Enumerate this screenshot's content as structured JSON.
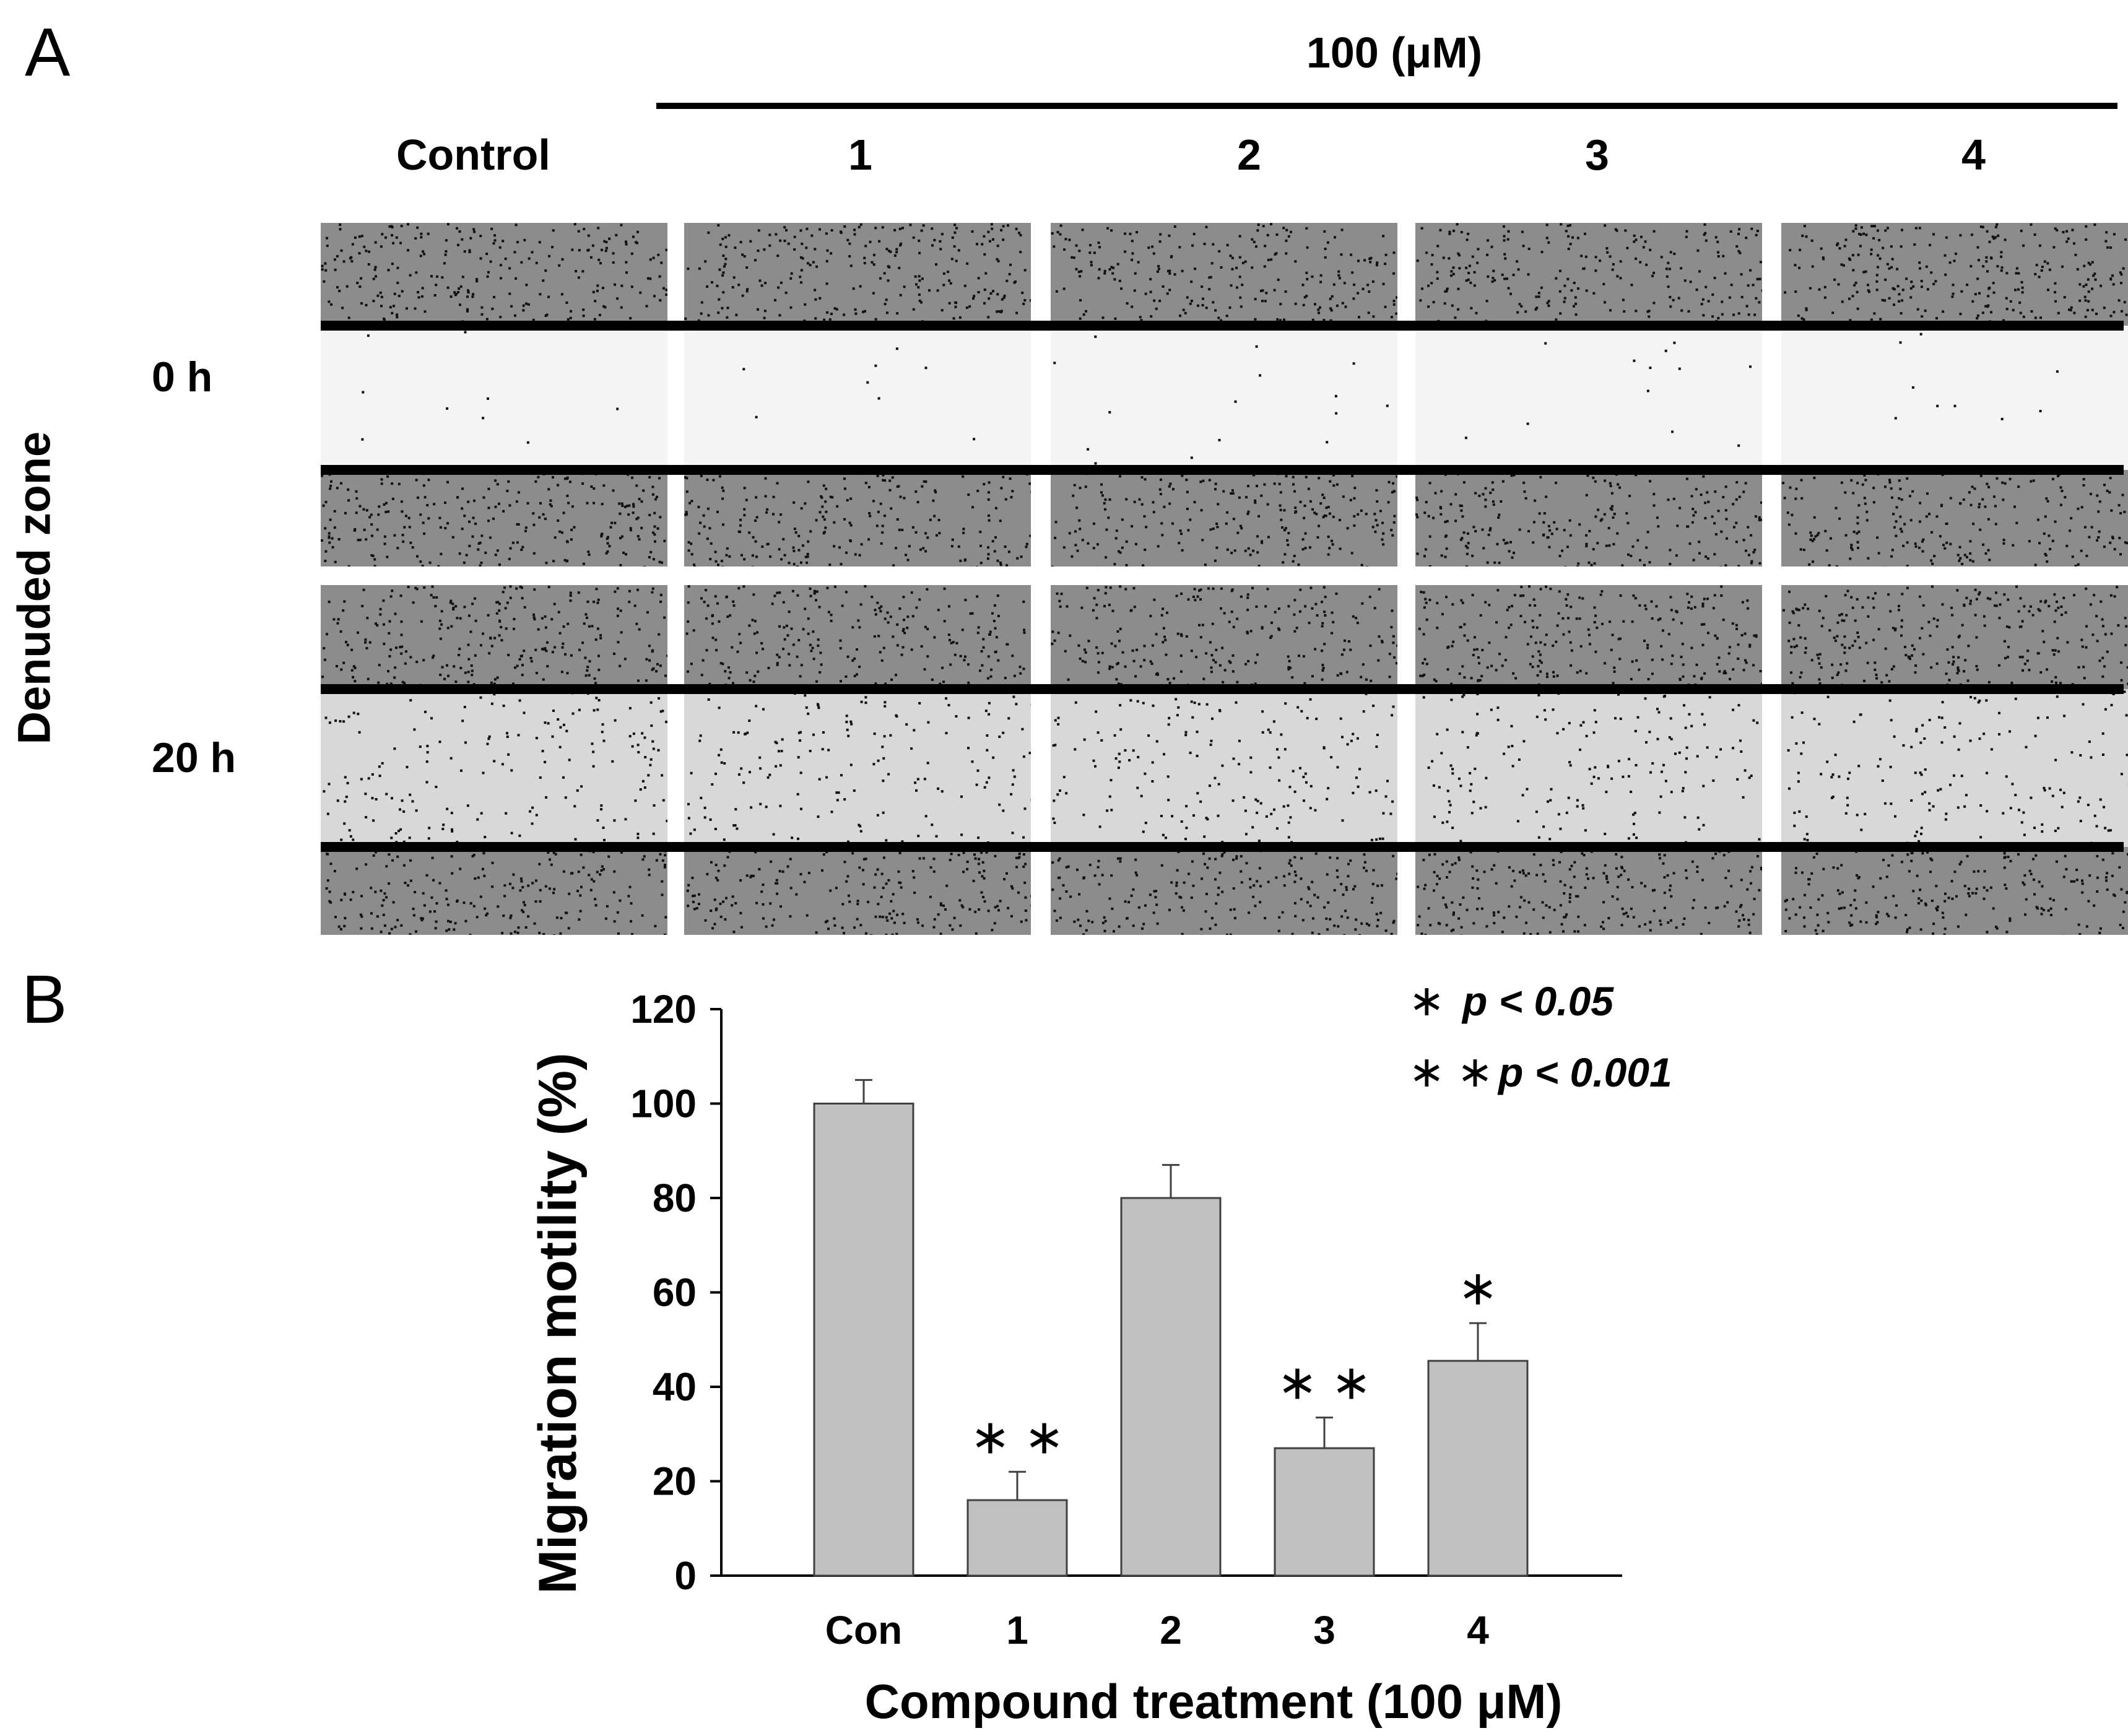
{
  "panel_a": {
    "letter": "A",
    "concentration_label": "100 (μM)",
    "columns": [
      "Control",
      "1",
      "2",
      "3",
      "4"
    ],
    "rows": [
      "0 h",
      "20 h"
    ],
    "side_label": "Denuded zone"
  },
  "panel_b": {
    "letter": "B",
    "legend": [
      {
        "symbol": "∗",
        "text": "p < 0.05"
      },
      {
        "symbol": "∗ ∗",
        "text": "p < 0.001"
      }
    ]
  },
  "chart_data": {
    "type": "bar",
    "categories": [
      "Con",
      "1",
      "2",
      "3",
      "4"
    ],
    "values": [
      100,
      16,
      80,
      27,
      45.5
    ],
    "errors": [
      5,
      6,
      7,
      6.5,
      8
    ],
    "significance": [
      "",
      "∗ ∗",
      "",
      "∗ ∗",
      "∗"
    ],
    "ylabel": "Migration motility (%)",
    "xlabel": "Compound treatment (100 μM)",
    "ylim": [
      0,
      120
    ],
    "yticks": [
      0,
      20,
      40,
      60,
      80,
      100,
      120
    ],
    "bar_color": "#c0c0c0",
    "grid": false,
    "legend_position": "top-right"
  }
}
